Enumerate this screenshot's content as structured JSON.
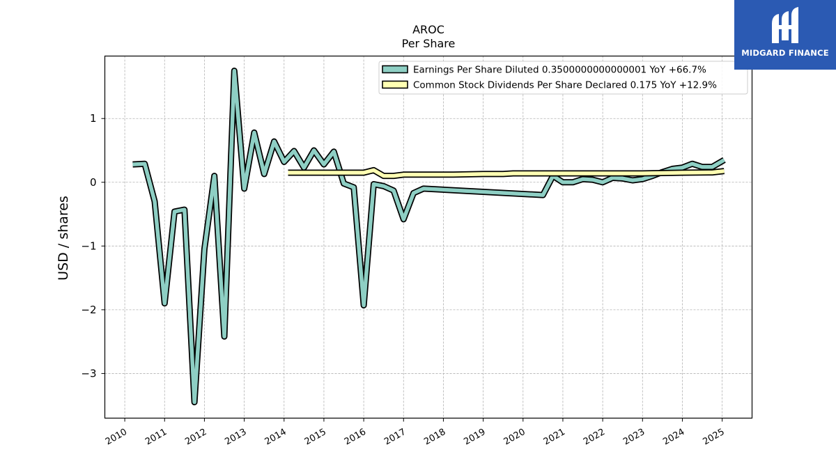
{
  "brand": {
    "name": "MIDGARD FINANCE",
    "bg_color": "#2b5ab3",
    "logo_icon": "midgard-logo-icon"
  },
  "chart_data": {
    "type": "line",
    "title": "AROC",
    "subtitle": "Per  Share",
    "xlabel": "",
    "ylabel": "USD / shares",
    "xlim": [
      2009.5,
      2025.75
    ],
    "ylim": [
      -3.7,
      1.98
    ],
    "yticks": [
      1,
      0,
      -1,
      -2,
      -3
    ],
    "ytick_labels": [
      "1",
      "0",
      "−1",
      "−2",
      "−3"
    ],
    "xticks": [
      2010,
      2011,
      2012,
      2013,
      2014,
      2015,
      2016,
      2017,
      2018,
      2019,
      2020,
      2021,
      2022,
      2023,
      2024,
      2025
    ],
    "xtick_labels": [
      "2010",
      "2011",
      "2012",
      "2013",
      "2014",
      "2015",
      "2016",
      "2017",
      "2018",
      "2019",
      "2020",
      "2021",
      "2022",
      "2023",
      "2024",
      "2025"
    ],
    "grid": true,
    "legend_position": "top-right",
    "series": [
      {
        "name": "Earnings Per Share Diluted",
        "legend_label": "Earnings Per Share Diluted  0.3500000000000001 YoY +66.7%",
        "color": "#8ecfc4",
        "x": [
          2010.2,
          2010.5,
          2010.75,
          2011.0,
          2011.25,
          2011.5,
          2011.75,
          2012.0,
          2012.25,
          2012.5,
          2012.75,
          2013.0,
          2013.25,
          2013.5,
          2013.75,
          2014.0,
          2014.25,
          2014.5,
          2014.75,
          2015.0,
          2015.25,
          2015.5,
          2015.75,
          2016.0,
          2016.25,
          2016.5,
          2016.75,
          2017.0,
          2017.25,
          2017.5,
          2020.5,
          2020.75,
          2021.0,
          2021.25,
          2021.5,
          2021.75,
          2022.0,
          2022.25,
          2022.5,
          2022.75,
          2023.0,
          2023.25,
          2023.5,
          2023.75,
          2024.0,
          2024.25,
          2024.5,
          2024.75,
          2025.05
        ],
        "values": [
          0.28,
          0.29,
          -0.3,
          -1.9,
          -0.46,
          -0.43,
          -3.45,
          -1.05,
          0.1,
          -2.42,
          1.75,
          -0.1,
          0.78,
          0.13,
          0.64,
          0.32,
          0.49,
          0.23,
          0.5,
          0.28,
          0.48,
          -0.02,
          -0.08,
          -1.93,
          -0.03,
          -0.06,
          -0.13,
          -0.58,
          -0.17,
          -0.1,
          -0.2,
          0.1,
          0.0,
          0.0,
          0.05,
          0.04,
          0.0,
          0.07,
          0.06,
          0.03,
          0.05,
          0.1,
          0.16,
          0.21,
          0.23,
          0.29,
          0.24,
          0.24,
          0.35
        ]
      },
      {
        "name": "Common Stock Dividends Per Share Declared",
        "legend_label": "Common Stock Dividends Per Share Declared  0.175 YoY +12.9%",
        "color": "#ffffb3",
        "x": [
          2014.1,
          2015.0,
          2016.0,
          2016.25,
          2016.5,
          2016.75,
          2017.0,
          2018.0,
          2018.25,
          2019.0,
          2019.5,
          2019.75,
          2020.0,
          2021.0,
          2022.0,
          2023.0,
          2024.0,
          2024.75,
          2025.05
        ],
        "values": [
          0.15,
          0.15,
          0.15,
          0.19,
          0.1,
          0.1,
          0.12,
          0.12,
          0.12,
          0.13,
          0.13,
          0.14,
          0.14,
          0.14,
          0.14,
          0.14,
          0.15,
          0.155,
          0.175
        ]
      }
    ]
  }
}
